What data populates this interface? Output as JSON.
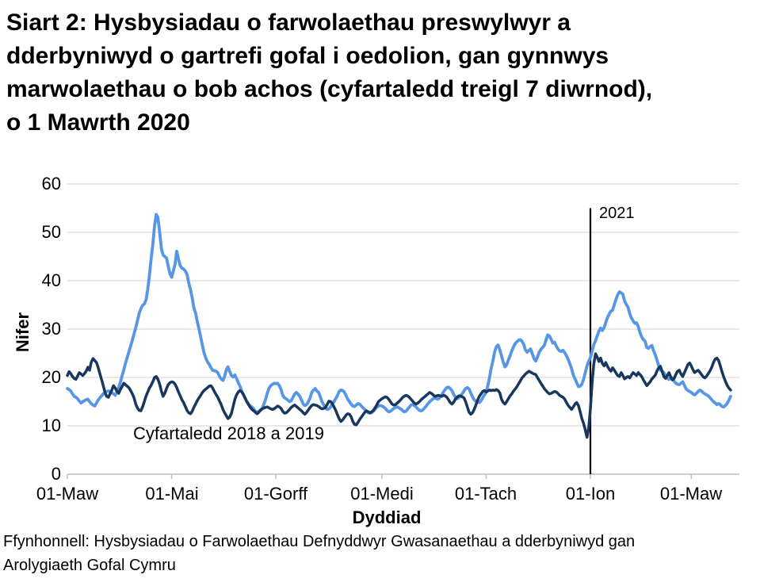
{
  "page": {
    "title_lines": [
      "Siart 2: Hysbysiadau o farwolaethau preswylwyr a",
      "dderbyniwyd o gartrefi gofal i oedolion, gan gynnwys",
      "marwolaethau o bob achos (cyfartaledd treigl 7 diwrnod),",
      "o 1 Mawrth 2020"
    ],
    "source_text": "Ffynhonnell: Hysbysiadau o Farwolaethau Defnyddwyr Gwasanaethau a dderbyniwyd gan Arolygiaeth Gofal Cymru"
  },
  "chart_data": {
    "type": "line",
    "xlabel": "Dyddiad",
    "ylabel": "Nifer",
    "ylim": [
      0,
      60
    ],
    "grid": true,
    "legend": "none",
    "y_ticks": [
      0,
      10,
      20,
      30,
      40,
      50,
      60
    ],
    "x_ticks": [
      {
        "day": 0,
        "label": "01-Maw"
      },
      {
        "day": 61,
        "label": "01-Mai"
      },
      {
        "day": 122,
        "label": "01-Gorff"
      },
      {
        "day": 184,
        "label": "01-Medi"
      },
      {
        "day": 245,
        "label": "01-Tach"
      },
      {
        "day": 306,
        "label": "01-Ion"
      },
      {
        "day": 365,
        "label": "01-Maw"
      }
    ],
    "x_range_days": [
      0,
      388
    ],
    "colors": {
      "grid": "#D9D9D9",
      "axis": "#BFBFBF",
      "marker_line": "#000000",
      "text": "#000000"
    },
    "annotations": {
      "series2_label": {
        "text": "Cyfartaledd 2018 a 2019"
      },
      "year_marker": {
        "text": "2021",
        "day": 306,
        "top_value": 55
      }
    },
    "series": [
      {
        "name": "notifications-2020-21",
        "color": "#5795E7",
        "stroke_width": 3.8,
        "start_day": 0,
        "values": [
          17.7,
          17.5,
          17.2,
          16.6,
          16.1,
          15.9,
          15.6,
          15.1,
          14.7,
          15.0,
          15.2,
          15.4,
          15.5,
          15.0,
          14.6,
          14.3,
          14.1,
          14.7,
          15.3,
          15.8,
          16.2,
          16.6,
          16.9,
          17.1,
          17.2,
          17.1,
          16.9,
          16.6,
          16.3,
          17.0,
          17.9,
          19.0,
          20.3,
          21.6,
          22.9,
          24.1,
          25.3,
          26.5,
          27.7,
          29.0,
          30.3,
          31.7,
          33.2,
          34.2,
          34.9,
          35.2,
          36.0,
          38.2,
          41.0,
          44.5,
          47.5,
          51.3,
          53.7,
          53.0,
          50.0,
          46.7,
          45.3,
          45.0,
          44.7,
          43.0,
          41.5,
          40.7,
          42.0,
          43.4,
          46.1,
          44.5,
          43.1,
          42.6,
          42.4,
          42.0,
          41.3,
          39.6,
          38.2,
          36.5,
          34.4,
          33.3,
          31.6,
          30.0,
          28.4,
          26.6,
          25.1,
          24.0,
          23.2,
          22.7,
          22.0,
          21.5,
          21.4,
          21.3,
          21.0,
          20.2,
          19.7,
          19.4,
          20.2,
          21.6,
          22.2,
          21.2,
          20.4,
          20.1,
          20.5,
          19.8,
          18.9,
          18.2,
          17.2,
          16.4,
          15.7,
          15.0,
          14.5,
          14.1,
          13.9,
          13.5,
          13.0,
          12.8,
          13.0,
          13.3,
          13.6,
          14.5,
          15.5,
          16.8,
          17.8,
          18.3,
          18.6,
          18.8,
          18.7,
          18.8,
          18.3,
          17.5,
          16.3,
          15.8,
          15.6,
          15.3,
          15.0,
          15.2,
          15.9,
          16.6,
          16.9,
          16.5,
          16.1,
          15.3,
          14.5,
          14.2,
          14.4,
          15.0,
          15.8,
          16.9,
          17.4,
          17.7,
          17.2,
          16.9,
          16.0,
          14.9,
          14.4,
          13.7,
          13.4,
          13.5,
          13.9,
          14.5,
          15.0,
          15.6,
          16.3,
          17.1,
          17.4,
          17.3,
          17.0,
          16.3,
          15.5,
          15.0,
          14.5,
          14.1,
          14.0,
          14.3,
          14.6,
          14.5,
          14.1,
          13.7,
          13.4,
          13.0,
          12.7,
          12.6,
          12.7,
          13.0,
          13.4,
          13.8,
          14.1,
          14.2,
          14.1,
          13.9,
          13.6,
          13.2,
          12.9,
          13.0,
          13.3,
          13.6,
          13.8,
          13.9,
          13.7,
          13.5,
          13.2,
          12.9,
          13.0,
          13.4,
          13.8,
          14.3,
          14.4,
          14.2,
          13.9,
          13.5,
          13.2,
          13.1,
          13.3,
          13.7,
          14.1,
          14.6,
          15.0,
          15.3,
          15.6,
          15.8,
          15.6,
          15.5,
          15.9,
          16.4,
          17.0,
          17.5,
          17.9,
          18.0,
          17.7,
          17.3,
          16.5,
          15.9,
          15.6,
          15.8,
          16.2,
          16.6,
          17.2,
          17.7,
          17.9,
          17.6,
          16.8,
          16.0,
          15.4,
          15.1,
          15.0,
          14.8,
          15.2,
          15.8,
          16.4,
          16.9,
          18.3,
          20.0,
          22.0,
          23.5,
          25.3,
          26.4,
          26.7,
          25.7,
          24.5,
          23.2,
          22.2,
          22.6,
          23.6,
          24.5,
          25.5,
          26.3,
          27.0,
          27.4,
          27.7,
          27.8,
          27.5,
          26.8,
          25.7,
          25.2,
          25.6,
          25.9,
          24.9,
          23.9,
          23.4,
          24.2,
          25.2,
          25.8,
          26.2,
          26.6,
          27.7,
          28.8,
          28.6,
          27.9,
          27.1,
          27.3,
          26.5,
          25.9,
          25.5,
          25.4,
          25.6,
          25.1,
          24.5,
          23.7,
          22.8,
          21.8,
          20.5,
          19.7,
          18.9,
          18.1,
          18.2,
          18.6,
          19.6,
          21.0,
          22.4,
          23.3,
          24.1,
          25.5,
          26.8,
          27.6,
          28.6,
          29.6,
          30.2,
          29.7,
          30.3,
          31.4,
          32.4,
          33.1,
          33.7,
          33.9,
          35.1,
          36.2,
          37.1,
          37.7,
          37.5,
          37.2,
          35.8,
          35.1,
          34.5,
          33.2,
          32.3,
          31.7,
          31.2,
          31.3,
          30.5,
          29.3,
          28.4,
          27.8,
          27.5,
          26.2,
          26.0,
          26.4,
          26.6,
          25.5,
          24.6,
          23.5,
          22.4,
          21.5,
          21.3,
          21.0,
          20.4,
          19.9,
          19.6,
          19.8,
          19.9,
          19.2,
          18.8,
          18.6,
          18.5,
          18.8,
          19.1,
          18.4,
          17.6,
          17.3,
          17.1,
          16.9,
          16.6,
          16.4,
          16.7,
          17.1,
          17.4,
          17.2,
          16.8,
          16.6,
          16.4,
          16.2,
          15.8,
          15.4,
          15.0,
          14.7,
          14.4,
          14.6,
          14.4,
          14.0,
          13.9,
          14.2,
          14.6,
          15.3,
          16.1
        ]
      },
      {
        "name": "cyfartaledd-2018-2019",
        "color": "#17375E",
        "stroke_width": 3.5,
        "start_day": 0,
        "values": [
          20.4,
          21.2,
          20.8,
          20.2,
          19.8,
          19.6,
          20.3,
          21.0,
          20.7,
          20.4,
          20.8,
          21.3,
          22.1,
          21.5,
          23.2,
          23.9,
          23.5,
          23.1,
          22.1,
          20.8,
          19.6,
          18.3,
          16.9,
          16.1,
          15.9,
          16.6,
          17.4,
          18.3,
          17.8,
          17.2,
          16.7,
          17.5,
          18.1,
          18.8,
          18.5,
          18.2,
          17.9,
          17.3,
          16.6,
          15.8,
          14.5,
          13.7,
          13.2,
          13.1,
          13.9,
          15.0,
          16.1,
          17.0,
          17.8,
          18.4,
          19.1,
          20.0,
          20.2,
          19.6,
          18.6,
          17.2,
          16.1,
          16.7,
          17.7,
          18.5,
          18.9,
          19.1,
          19.0,
          18.6,
          17.9,
          17.0,
          16.2,
          15.4,
          14.8,
          14.0,
          13.2,
          12.7,
          12.5,
          13.0,
          13.8,
          14.5,
          15.2,
          15.8,
          16.3,
          16.9,
          17.3,
          17.6,
          17.9,
          18.2,
          18.3,
          17.8,
          17.1,
          16.5,
          15.9,
          15.1,
          14.4,
          13.4,
          12.7,
          12.1,
          11.5,
          11.8,
          12.6,
          14.0,
          15.5,
          16.4,
          17.0,
          17.3,
          17.0,
          16.5,
          15.7,
          15.0,
          14.4,
          13.8,
          13.4,
          13.1,
          12.8,
          12.5,
          12.8,
          13.2,
          13.5,
          13.7,
          13.8,
          13.9,
          13.7,
          13.5,
          13.4,
          13.5,
          13.8,
          14.1,
          13.9,
          13.6,
          13.0,
          12.6,
          12.7,
          13.0,
          13.4,
          13.8,
          14.1,
          14.3,
          14.0,
          13.7,
          13.4,
          13.1,
          12.7,
          12.4,
          12.8,
          13.3,
          13.8,
          14.2,
          14.4,
          14.3,
          14.2,
          14.0,
          13.7,
          13.5,
          13.6,
          13.8,
          14.4,
          15.1,
          15.0,
          14.6,
          13.9,
          13.2,
          12.3,
          11.5,
          10.9,
          11.2,
          11.7,
          12.2,
          12.5,
          12.4,
          11.9,
          10.9,
          10.3,
          10.2,
          10.7,
          11.3,
          11.8,
          12.3,
          12.8,
          13.1,
          12.9,
          12.7,
          12.9,
          13.2,
          13.7,
          14.3,
          15.0,
          15.3,
          15.6,
          15.8,
          16.0,
          15.9,
          15.5,
          15.0,
          14.5,
          14.3,
          14.4,
          14.7,
          15.0,
          15.4,
          15.8,
          16.1,
          16.3,
          16.2,
          15.9,
          15.5,
          15.1,
          14.7,
          14.5,
          14.7,
          15.0,
          15.4,
          15.7,
          16.0,
          16.3,
          16.6,
          16.9,
          16.7,
          16.4,
          16.1,
          16.2,
          16.3,
          16.2,
          16.1,
          16.3,
          16.2,
          15.9,
          15.4,
          14.8,
          14.5,
          14.9,
          15.5,
          15.9,
          16.2,
          16.2,
          16.0,
          15.8,
          15.0,
          13.9,
          12.8,
          12.4,
          12.7,
          13.4,
          14.3,
          15.3,
          16.1,
          16.6,
          17.1,
          17.3,
          17.0,
          17.2,
          17.4,
          17.3,
          17.4,
          17.3,
          17.5,
          17.3,
          16.8,
          15.5,
          14.8,
          14.5,
          15.0,
          15.6,
          16.2,
          16.6,
          17.2,
          17.6,
          18.1,
          18.7,
          19.3,
          19.9,
          20.3,
          20.7,
          21.0,
          21.3,
          21.1,
          20.9,
          20.7,
          20.6,
          20.0,
          19.4,
          18.8,
          18.3,
          17.7,
          17.3,
          16.9,
          16.6,
          16.7,
          16.9,
          17.1,
          17.0,
          16.7,
          16.3,
          16.1,
          15.9,
          15.5,
          14.8,
          14.2,
          13.8,
          13.4,
          13.9,
          14.5,
          14.8,
          14.2,
          12.9,
          11.5,
          10.5,
          9.2,
          7.6,
          9.5,
          13.5,
          19.0,
          22.8,
          24.9,
          24.2,
          23.3,
          24.0,
          22.9,
          22.4,
          23.1,
          22.3,
          21.7,
          21.3,
          22.0,
          21.5,
          20.9,
          20.4,
          20.2,
          21.0,
          20.4,
          19.7,
          20.0,
          20.2,
          19.9,
          20.5,
          21.0,
          20.7,
          20.4,
          21.0,
          20.6,
          20.2,
          19.5,
          18.9,
          18.3,
          18.7,
          19.1,
          19.7,
          20.1,
          20.5,
          21.4,
          22.0,
          22.3,
          21.2,
          20.2,
          19.8,
          20.4,
          21.0,
          20.1,
          19.5,
          19.8,
          20.6,
          21.3,
          21.5,
          20.7,
          20.2,
          21.0,
          21.8,
          22.6,
          23.0,
          22.4,
          21.6,
          21.0,
          21.3,
          21.5,
          21.1,
          20.6,
          20.1,
          19.9,
          20.3,
          20.8,
          21.4,
          22.1,
          23.1,
          23.8,
          24.0,
          23.5,
          22.4,
          21.2,
          20.1,
          19.2,
          18.4,
          17.8,
          17.4
        ]
      }
    ]
  }
}
